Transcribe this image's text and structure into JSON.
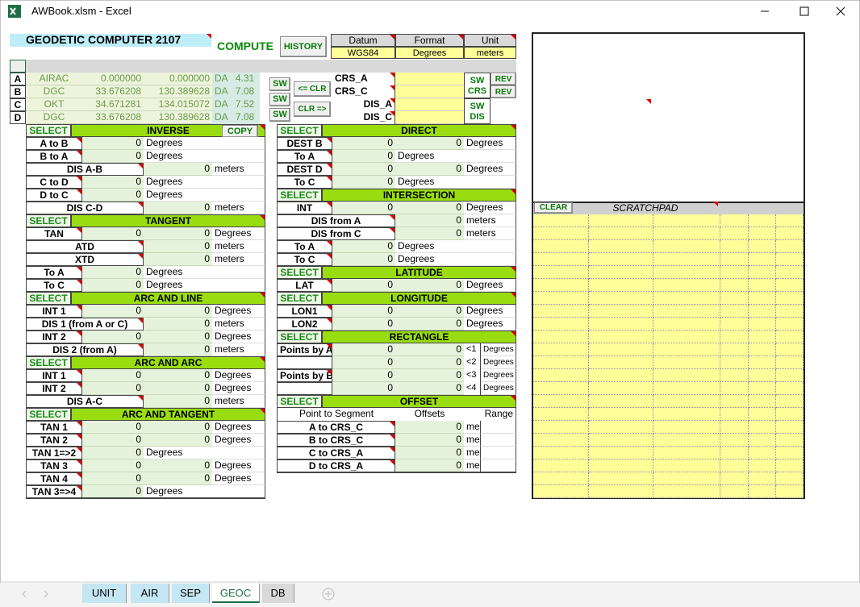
{
  "window": {
    "title": "AWBook.xlsm - Excel"
  },
  "header": {
    "title": "GEODETIC COMPUTER  2107",
    "compute": "COMPUTE",
    "history": "HISTORY",
    "settings": [
      {
        "label": "Datum",
        "value": "WGS84"
      },
      {
        "label": "Format",
        "value": "Degrees"
      },
      {
        "label": "Unit",
        "value": "meters"
      }
    ]
  },
  "points": [
    {
      "id": "A",
      "name": "AIRAC",
      "lat": "0.000000",
      "lon": "0.000000",
      "da_label": "DA",
      "da": 4.31
    },
    {
      "id": "B",
      "name": "DGC",
      "lat": "33.676208",
      "lon": "130.389628",
      "da_label": "DA",
      "da": 7.08
    },
    {
      "id": "C",
      "name": "OKT",
      "lat": "34.671281",
      "lon": "134.015072",
      "da_label": "DA",
      "da": 7.52
    },
    {
      "id": "D",
      "name": "DGC",
      "lat": "33.676208",
      "lon": "130.389628",
      "da_label": "DA",
      "da": 7.08
    }
  ],
  "point_controls": {
    "sw": [
      "SW",
      "SW",
      "SW"
    ],
    "clr_left": "<= CLR",
    "clr_right": "CLR =>",
    "fields": [
      "CRS_A",
      "CRS_C",
      "DIS_A",
      "DIS_C"
    ],
    "sw_crs": "SW CRS",
    "sw_dis": "SW DIS",
    "rev": [
      "REV",
      "REV"
    ]
  },
  "left_sections": [
    {
      "select": "SELECT",
      "title": "INVERSE",
      "button": "COPY",
      "rows": [
        {
          "label": "A to B",
          "v1": 0,
          "unit": "Degrees"
        },
        {
          "label": "B to A",
          "v1": 0,
          "unit": "Degrees"
        },
        {
          "label": "DIS A-B",
          "v2": 0,
          "unit": "meters"
        },
        {
          "label": "C to D",
          "v1": 0,
          "unit": "Degrees"
        },
        {
          "label": "D to C",
          "v1": 0,
          "unit": "Degrees"
        },
        {
          "label": "DIS C-D",
          "v2": 0,
          "unit": "meters"
        }
      ]
    },
    {
      "select": "SELECT",
      "title": "TANGENT",
      "rows": [
        {
          "label": "TAN",
          "v1": 0,
          "v2": 0,
          "unit": "Degrees"
        },
        {
          "label": "ATD",
          "v2": 0,
          "unit": "meters"
        },
        {
          "label": "XTD",
          "v2": 0,
          "unit": "meters"
        },
        {
          "label": "To A",
          "v1": 0,
          "unit": "Degrees"
        },
        {
          "label": "To C",
          "v1": 0,
          "unit": "Degrees"
        }
      ]
    },
    {
      "select": "SELECT",
      "title": "ARC AND LINE",
      "rows": [
        {
          "label": "INT 1",
          "v1": 0,
          "v2": 0,
          "unit": "Degrees"
        },
        {
          "label": "DIS 1 (from A or C)",
          "v2": 0,
          "unit": "meters"
        },
        {
          "label": "INT 2",
          "v1": 0,
          "v2": 0,
          "unit": "Degrees"
        },
        {
          "label": "DIS 2 (from A)",
          "v2": 0,
          "unit": "meters"
        }
      ]
    },
    {
      "select": "SELECT",
      "title": "ARC AND ARC",
      "rows": [
        {
          "label": "INT 1",
          "v1": 0,
          "v2": 0,
          "unit": "Degrees"
        },
        {
          "label": "INT 2",
          "v1": 0,
          "v2": 0,
          "unit": "Degrees"
        },
        {
          "label": "DIS A-C",
          "v2": 0,
          "unit": "meters"
        }
      ]
    },
    {
      "select": "SELECT",
      "title": "ARC AND TANGENT",
      "rows": [
        {
          "label": "TAN 1",
          "v1": 0,
          "v2": 0,
          "unit": "Degrees"
        },
        {
          "label": "TAN 2",
          "v1": 0,
          "v2": 0,
          "unit": "Degrees"
        },
        {
          "label": "TAN 1=>2",
          "v1": 0,
          "unit": "Degrees"
        },
        {
          "label": "TAN 3",
          "v1": 0,
          "v2": 0,
          "unit": "Degrees"
        },
        {
          "label": "TAN 4",
          "v1": 0,
          "v2": 0,
          "unit": "Degrees"
        },
        {
          "label": "TAN 3=>4",
          "v1": 0,
          "unit": "Degrees"
        }
      ]
    }
  ],
  "middle_sections": [
    {
      "select": "SELECT",
      "title": "DIRECT",
      "rows": [
        {
          "label": "DEST B",
          "v1": 0,
          "v2": 0,
          "unit": "Degrees"
        },
        {
          "label": "To A",
          "v1": 0,
          "unit": "Degrees"
        },
        {
          "label": "DEST D",
          "v1": 0,
          "v2": 0,
          "unit": "Degrees"
        },
        {
          "label": "To C",
          "v1": 0,
          "unit": "Degrees"
        }
      ]
    },
    {
      "select": "SELECT",
      "title": "INTERSECTION",
      "rows": [
        {
          "label": "INT",
          "v1": 0,
          "v2": 0,
          "unit": "Degrees"
        },
        {
          "label": "DIS from A",
          "v2": 0,
          "unit": "meters"
        },
        {
          "label": "DIS from C",
          "v2": 0,
          "unit": "meters"
        },
        {
          "label": "To A",
          "v1": 0,
          "unit": "Degrees"
        },
        {
          "label": "To C",
          "v1": 0,
          "unit": "Degrees"
        }
      ]
    },
    {
      "select": "SELECT",
      "title": "LATITUDE",
      "rows": [
        {
          "label": "LAT",
          "v1": 0,
          "v2": 0,
          "unit": "Degrees"
        }
      ]
    },
    {
      "select": "SELECT",
      "title": "LONGITUDE",
      "rows": [
        {
          "label": "LON1",
          "v1": 0,
          "v2": 0,
          "unit": "Degrees"
        },
        {
          "label": "LON2",
          "v1": 0,
          "v2": 0,
          "unit": "Degrees"
        }
      ]
    },
    {
      "select": "SELECT",
      "title": "RECTANGLE",
      "rows": [
        {
          "label": "Points by A",
          "v1": 0,
          "v2": 0,
          "tag": "<1",
          "unit": "Degrees"
        },
        {
          "v1": 0,
          "v2": 0,
          "tag": "<2",
          "unit": "Degrees"
        },
        {
          "label": "Points by B",
          "v1": 0,
          "v2": 0,
          "tag": "<3",
          "unit": "Degrees"
        },
        {
          "v1": 0,
          "v2": 0,
          "tag": "<4",
          "unit": "Degrees"
        }
      ]
    },
    {
      "select": "SELECT",
      "title": "OFFSET",
      "rows": [
        {
          "columns": [
            "Point to Segment",
            "Offsets",
            "Range"
          ]
        },
        {
          "label": "A to CRS_C",
          "v2": 0,
          "unit": "me"
        },
        {
          "label": "B to CRS_C",
          "v2": 0,
          "unit": "me"
        },
        {
          "label": "C to CRS_A",
          "v2": 0,
          "unit": "me"
        },
        {
          "label": "D to CRS_A",
          "v2": 0,
          "unit": "me"
        }
      ]
    }
  ],
  "scratchpad": {
    "clear": "CLEAR",
    "title": "SCRATCHPAD"
  },
  "tabs": [
    "UNIT",
    "AIR",
    "SEP",
    "GEOC",
    "DB"
  ],
  "active_tab": 3
}
